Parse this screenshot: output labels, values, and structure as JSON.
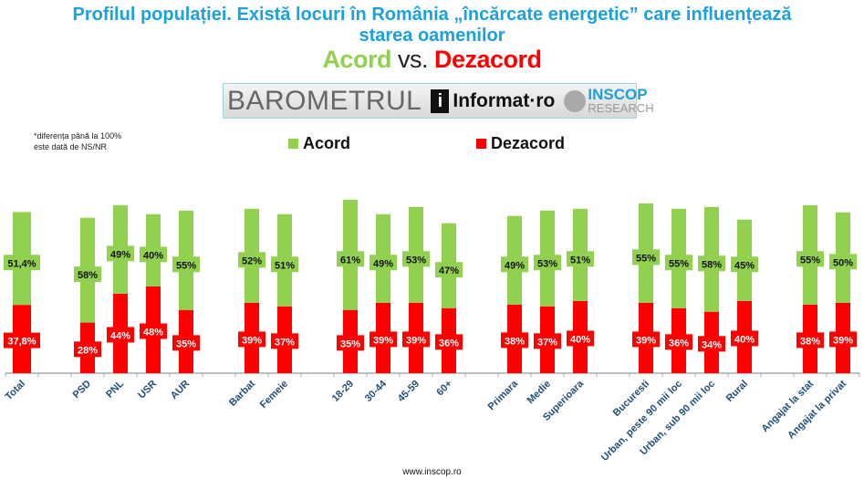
{
  "header": {
    "title_line1": "Profilul populației. Există locuri în România „încărcate energetic” care influențează",
    "title_line2": "starea oamenilor",
    "subtitle_acord": "Acord",
    "subtitle_vs": "vs.",
    "subtitle_dezacord": "Dezacord"
  },
  "logo": {
    "barometrul": "BAROMETRUL",
    "informat": "Informat·ro",
    "inscop": "INSCOP",
    "research": "RESEARCH"
  },
  "note": {
    "line1": "*diferența până la 100%",
    "line2": "este dată de NS/NR"
  },
  "footer": "www.inscop.ro",
  "chart_data": {
    "type": "bar",
    "stacked": true,
    "title": "Profilul populației. Există locuri în România „încărcate energetic” care influențează starea oamenilor",
    "categories": [
      "Total",
      "",
      "PSD",
      "PNL",
      "USR",
      "AUR",
      "",
      "Barbat",
      "Femeie",
      "",
      "18-29",
      "30-44",
      "45-59",
      "60+",
      "",
      "Primara",
      "Medie",
      "Superioara",
      "",
      "Bucuresti",
      "Urban, peste 90 mii loc",
      "Urban, sub 90 mii loc",
      "Rural",
      "",
      "Angajat la stat",
      "Angajat la privat"
    ],
    "series": [
      {
        "name": "Dezacord",
        "color": "#ff0000",
        "values": [
          37.8,
          null,
          28,
          44,
          48,
          35,
          null,
          39,
          37,
          null,
          35,
          39,
          39,
          36,
          null,
          38,
          37,
          40,
          null,
          39,
          36,
          34,
          40,
          null,
          38,
          39
        ],
        "labels": [
          "37,8%",
          "",
          "28%",
          "44%",
          "48%",
          "35%",
          "",
          "39%",
          "37%",
          "",
          "35%",
          "39%",
          "39%",
          "36%",
          "",
          "38%",
          "37%",
          "40%",
          "",
          "39%",
          "36%",
          "34%",
          "40%",
          "",
          "38%",
          "39%"
        ]
      },
      {
        "name": "Acord",
        "color": "#92d050",
        "values": [
          51.4,
          null,
          58,
          49,
          40,
          55,
          null,
          52,
          51,
          null,
          61,
          49,
          53,
          47,
          null,
          49,
          53,
          51,
          null,
          55,
          55,
          58,
          45,
          null,
          55,
          50
        ],
        "labels": [
          "51,4%",
          "",
          "58%",
          "49%",
          "40%",
          "55%",
          "",
          "52%",
          "51%",
          "",
          "61%",
          "49%",
          "53%",
          "47%",
          "",
          "49%",
          "53%",
          "51%",
          "",
          "55%",
          "55%",
          "58%",
          "45%",
          "",
          "55%",
          "50%"
        ]
      }
    ],
    "legend": [
      "Acord",
      "Dezacord"
    ],
    "legend_position": "top",
    "ylim": [
      0,
      100
    ],
    "grid": false
  }
}
